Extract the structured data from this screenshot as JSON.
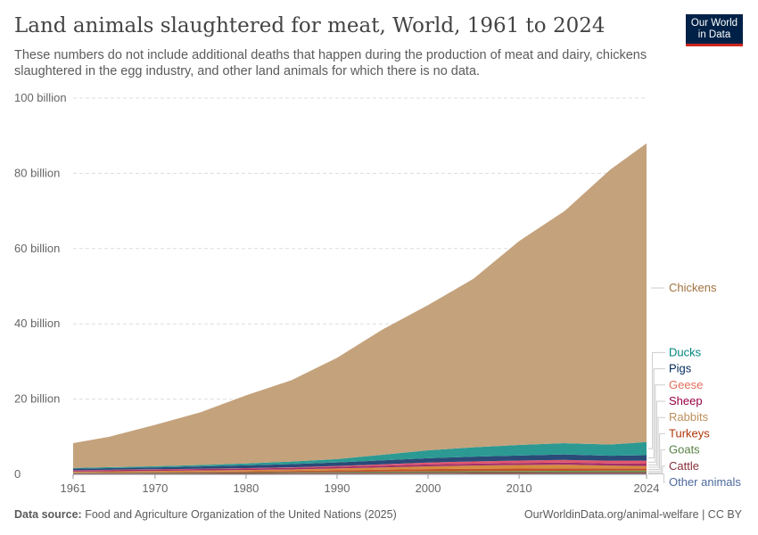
{
  "header": {
    "title": "Land animals slaughtered for meat, World, 1961 to 2024",
    "subtitle": "These numbers do not include additional deaths that happen during the production of meat and dairy, chickens slaughtered in the egg industry, and other land animals for which there is no data.",
    "logo": "Our World in Data"
  },
  "footer": {
    "source_label": "Data source:",
    "source": "Food and Agriculture Organization of the United Nations (2025)",
    "link": "OurWorldinData.org/animal-welfare | CC BY"
  },
  "chart_data": {
    "type": "area",
    "stacked": true,
    "x": [
      1961,
      1965,
      1970,
      1975,
      1980,
      1985,
      1990,
      1995,
      2000,
      2005,
      2010,
      2015,
      2020,
      2024
    ],
    "xticks": [
      "1961",
      "1970",
      "1980",
      "1990",
      "2000",
      "2010",
      "2024"
    ],
    "yticks": [
      "0",
      "20 billion",
      "40 billion",
      "60 billion",
      "80 billion",
      "100 billion"
    ],
    "ylim": [
      0,
      100
    ],
    "yunit": "billion",
    "grid": "horizontal dashed",
    "legend": "right, labels at series end",
    "series": [
      {
        "name": "Other animals",
        "color": "#6D7FA6",
        "label_color": "#4C6A9C",
        "values": [
          0.1,
          0.1,
          0.1,
          0.12,
          0.13,
          0.14,
          0.15,
          0.16,
          0.17,
          0.18,
          0.19,
          0.2,
          0.2,
          0.2
        ]
      },
      {
        "name": "Cattle",
        "color": "#8E3A46",
        "label_color": "#883039",
        "values": [
          0.17,
          0.19,
          0.21,
          0.22,
          0.23,
          0.24,
          0.25,
          0.26,
          0.27,
          0.28,
          0.29,
          0.3,
          0.3,
          0.31
        ]
      },
      {
        "name": "Goats",
        "color": "#6D8E4D",
        "label_color": "#578145",
        "values": [
          0.14,
          0.15,
          0.17,
          0.19,
          0.2,
          0.23,
          0.27,
          0.32,
          0.35,
          0.4,
          0.42,
          0.45,
          0.48,
          0.5
        ]
      },
      {
        "name": "Turkeys",
        "color": "#C1512A",
        "label_color": "#B13507",
        "values": [
          0.13,
          0.15,
          0.18,
          0.2,
          0.24,
          0.3,
          0.4,
          0.5,
          0.6,
          0.62,
          0.63,
          0.64,
          0.62,
          0.6
        ]
      },
      {
        "name": "Rabbits",
        "color": "#D58C3F",
        "label_color": "#BC8E5A",
        "values": [
          0.2,
          0.22,
          0.25,
          0.3,
          0.35,
          0.4,
          0.5,
          0.6,
          0.75,
          0.85,
          0.95,
          1.0,
          0.7,
          0.6
        ]
      },
      {
        "name": "Sheep",
        "color": "#A2306B",
        "label_color": "#970046",
        "values": [
          0.33,
          0.35,
          0.37,
          0.38,
          0.4,
          0.42,
          0.45,
          0.48,
          0.5,
          0.52,
          0.53,
          0.55,
          0.6,
          0.62
        ]
      },
      {
        "name": "Geese",
        "color": "#E0566E",
        "label_color": "#E56E5A",
        "values": [
          0.05,
          0.06,
          0.07,
          0.08,
          0.1,
          0.14,
          0.2,
          0.35,
          0.5,
          0.6,
          0.65,
          0.7,
          0.75,
          0.8
        ]
      },
      {
        "name": "Pigs",
        "color": "#2A4A78",
        "label_color": "#00295B",
        "values": [
          0.38,
          0.45,
          0.5,
          0.6,
          0.75,
          0.85,
          0.95,
          1.05,
          1.15,
          1.25,
          1.35,
          1.45,
          1.3,
          1.45
        ]
      },
      {
        "name": "Ducks",
        "color": "#2C9A93",
        "label_color": "#00847E",
        "values": [
          0.2,
          0.25,
          0.3,
          0.4,
          0.5,
          0.7,
          0.9,
          1.5,
          2.1,
          2.5,
          2.8,
          3.0,
          3.0,
          3.5
        ]
      },
      {
        "name": "Chickens",
        "color": "#C4A27C",
        "label_color": "#A2723F",
        "values": [
          6.6,
          8.1,
          11.0,
          14.0,
          18.1,
          21.6,
          26.9,
          33.3,
          38.6,
          44.8,
          54.2,
          61.7,
          73.0,
          79.4
        ]
      }
    ]
  }
}
